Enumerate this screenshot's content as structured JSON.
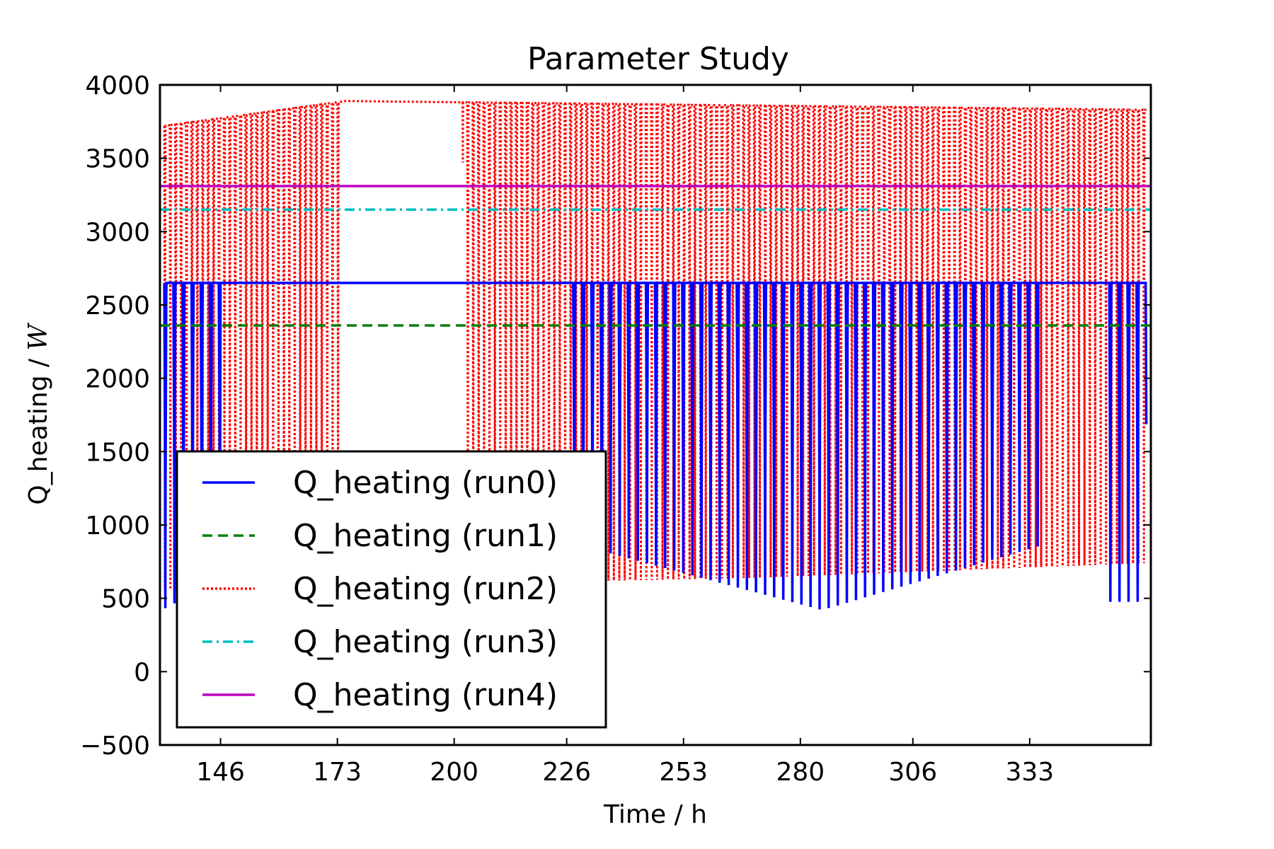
{
  "chart_data": {
    "type": "line",
    "title": "Parameter Study",
    "xlabel": "Time / h",
    "ylabel": "Q_heating / W",
    "ylabel_prefix": "Q_heating / ",
    "ylabel_unit": "W",
    "xlim": [
      132,
      361
    ],
    "ylim": [
      -500,
      4000
    ],
    "xticks": [
      146,
      173,
      200,
      226,
      253,
      280,
      306,
      333
    ],
    "yticks": [
      -500,
      0,
      500,
      1000,
      1500,
      2000,
      2500,
      3000,
      3500,
      4000
    ],
    "ytick_labels": [
      "−500",
      "0",
      "500",
      "1000",
      "1500",
      "2000",
      "2500",
      "3000",
      "3500",
      "4000"
    ],
    "grid": false,
    "legend_position": "lower left",
    "series": [
      {
        "name": "Q_heating (run0)",
        "color": "#0000ff",
        "style": "solid",
        "kind": "oscillating",
        "high": 2650,
        "low_start": 300,
        "low_mid": 750,
        "low_min": 290,
        "low_end": 350,
        "period_h": 2.1,
        "start_h": 133,
        "end_h": 360,
        "plateaus": [
          [
            146,
            227
          ],
          [
            335,
            350
          ]
        ]
      },
      {
        "name": "Q_heating (run1)",
        "color": "#008000",
        "style": "dashed",
        "kind": "constant",
        "value": 2360
      },
      {
        "name": "Q_heating (run2)",
        "color": "#ff0000",
        "style": "dotted",
        "kind": "oscillating",
        "high_start": 3720,
        "high_peak": 3890,
        "high_end": 3830,
        "low_start": 560,
        "low_mid": 640,
        "low_end": 740,
        "period_h": 1.25,
        "start_h": 133,
        "end_h": 360,
        "plateaus": [
          [
            174,
            202
          ]
        ]
      },
      {
        "name": "Q_heating (run3)",
        "color": "#00bfbf",
        "style": "dashdot",
        "kind": "constant",
        "value": 3150
      },
      {
        "name": "Q_heating (run4)",
        "color": "#bf00bf",
        "style": "solid",
        "kind": "constant",
        "value": 3310
      }
    ]
  }
}
